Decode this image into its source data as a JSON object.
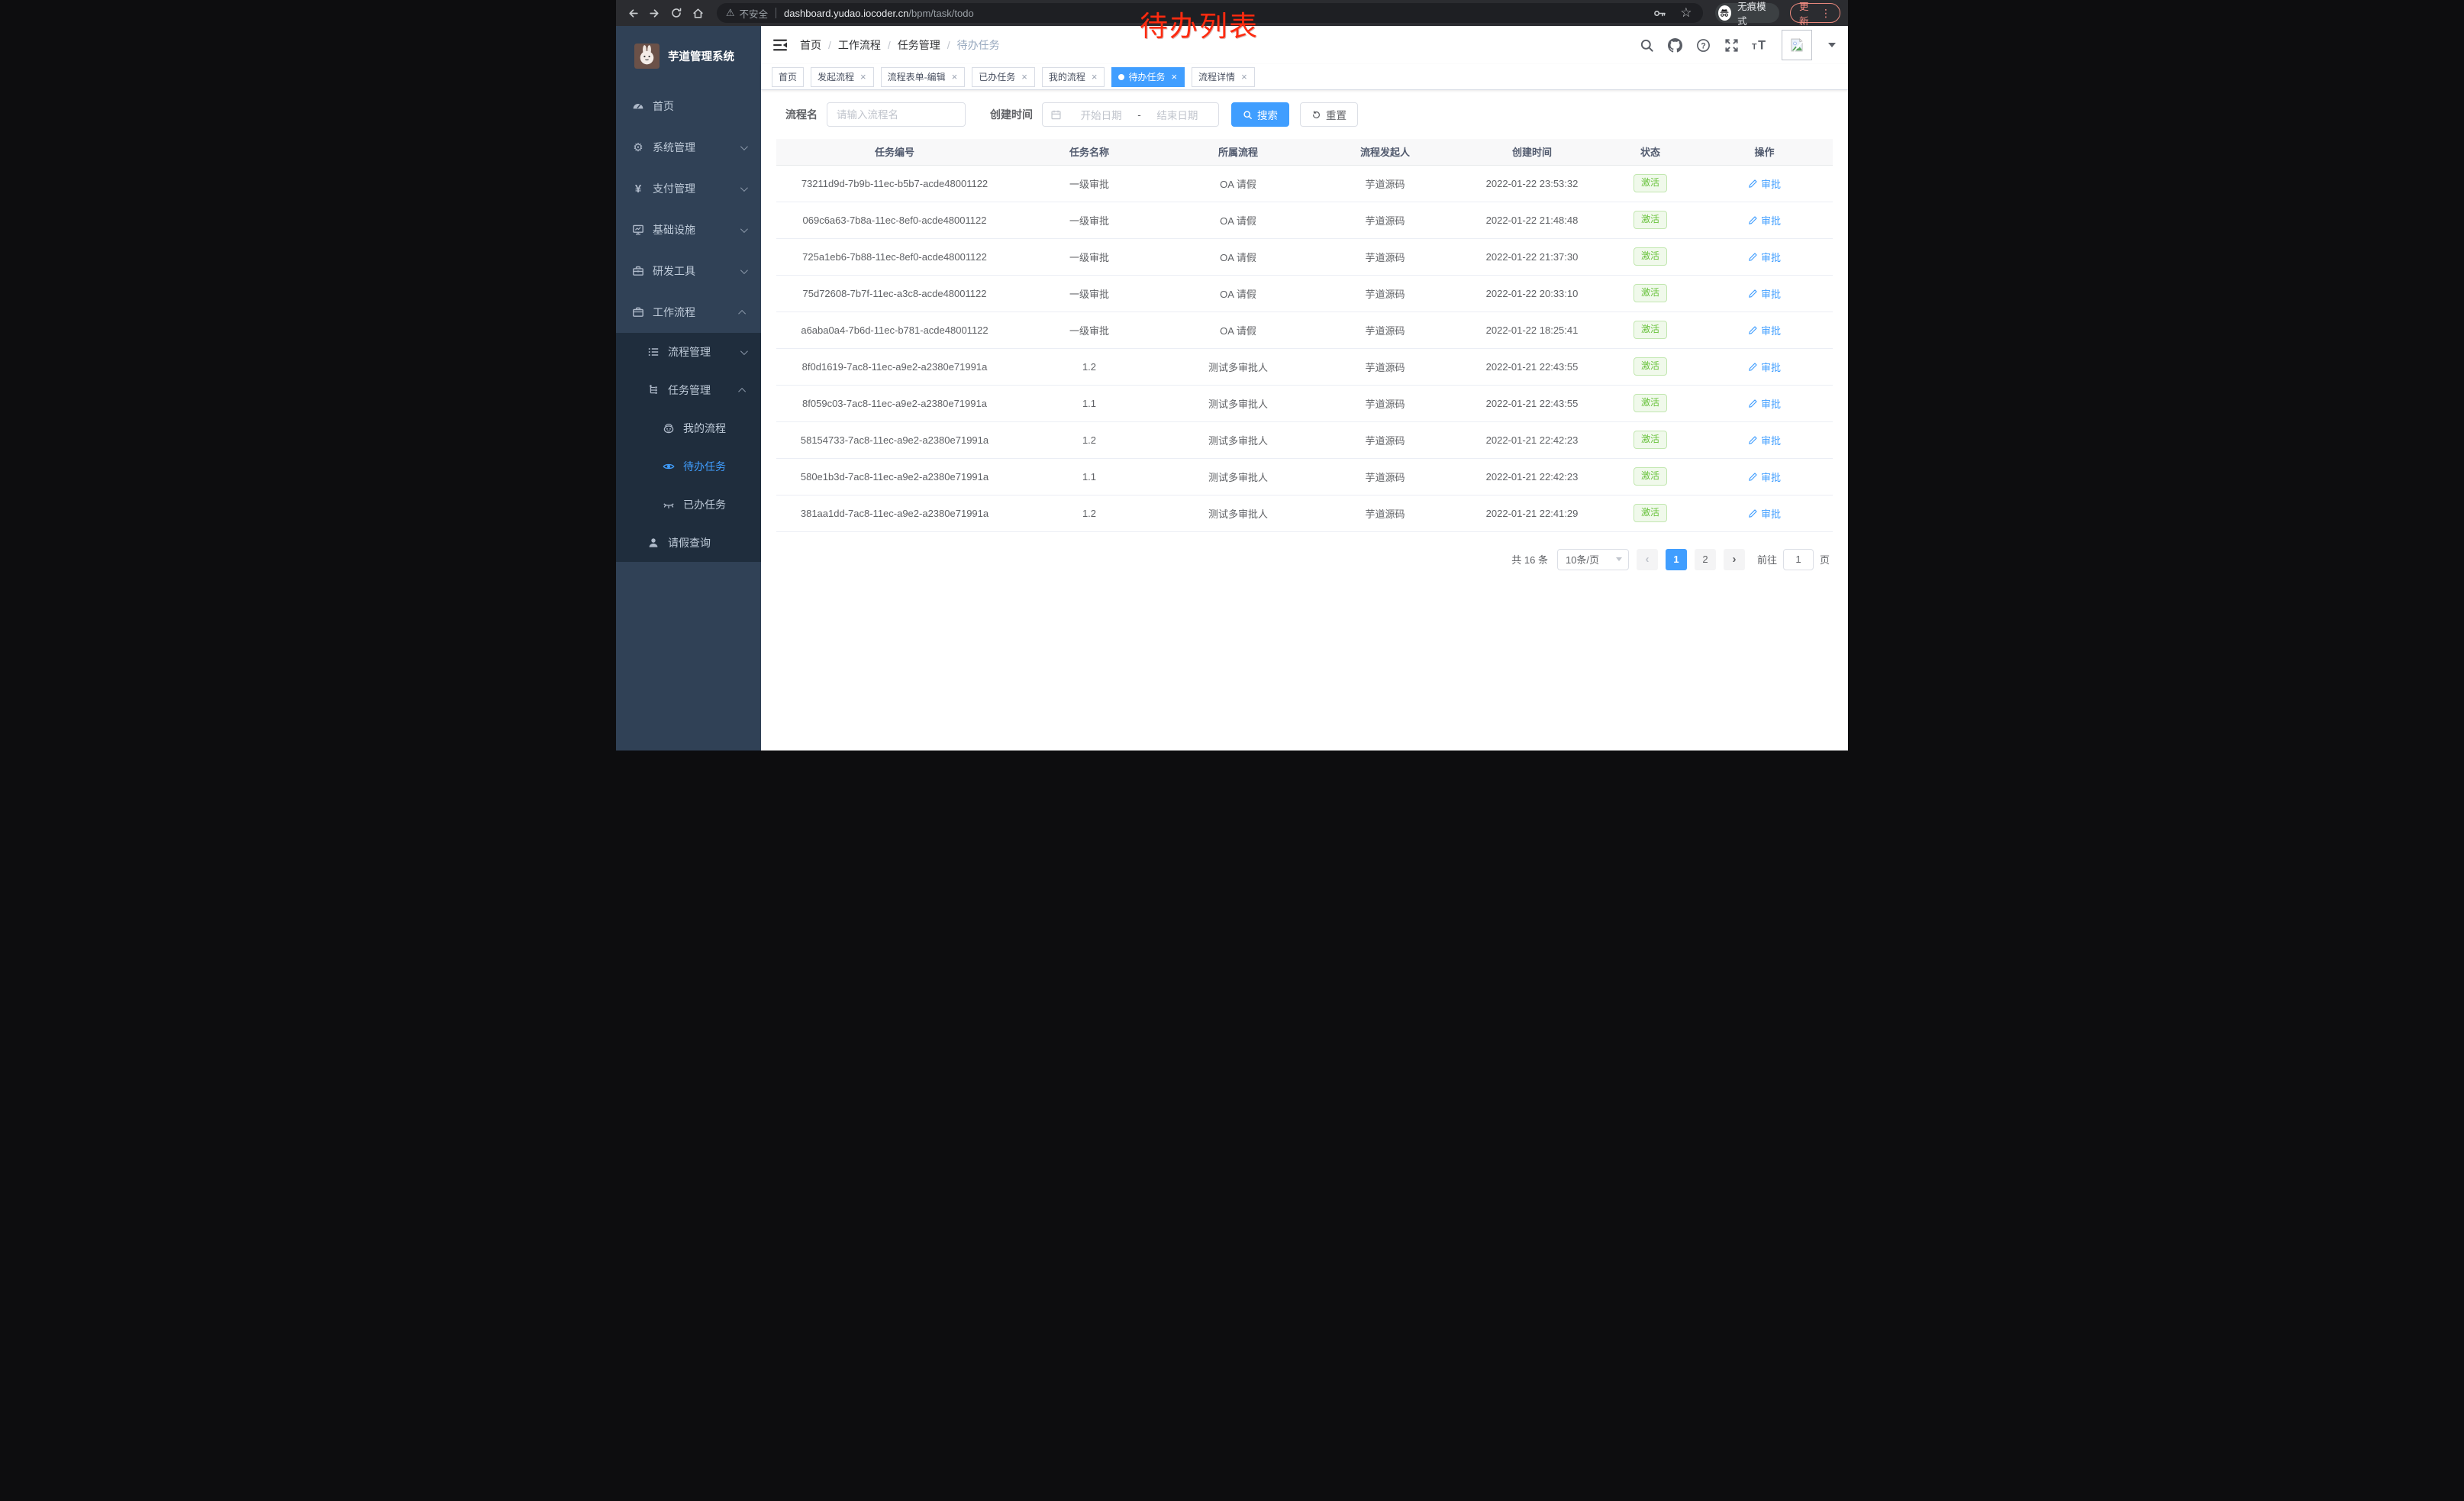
{
  "browser": {
    "security_label": "不安全",
    "url_host": "dashboard.yudao.iocoder.cn",
    "url_path": "/bpm/task/todo",
    "incognito_label": "无痕模式",
    "update_label": "更新"
  },
  "annotation": "待办列表",
  "sidebar": {
    "title": "芋道管理系统",
    "items": [
      {
        "label": "首页",
        "icon": "dashboard",
        "level": 1
      },
      {
        "label": "系统管理",
        "icon": "gear",
        "level": 1,
        "chevron": "down"
      },
      {
        "label": "支付管理",
        "icon": "yen",
        "level": 1,
        "chevron": "down"
      },
      {
        "label": "基础设施",
        "icon": "monitor",
        "level": 1,
        "chevron": "down"
      },
      {
        "label": "研发工具",
        "icon": "toolbox",
        "level": 1,
        "chevron": "down"
      },
      {
        "label": "工作流程",
        "icon": "briefcase",
        "level": 1,
        "chevron": "up"
      },
      {
        "label": "流程管理",
        "icon": "list-tree",
        "level": 2,
        "chevron": "down",
        "dark": true
      },
      {
        "label": "任务管理",
        "icon": "org-tree",
        "level": 2,
        "chevron": "up",
        "dark": true
      },
      {
        "label": "我的流程",
        "icon": "robot",
        "level": 3,
        "dark": true
      },
      {
        "label": "待办任务",
        "icon": "eye",
        "level": 3,
        "dark": true,
        "active": true
      },
      {
        "label": "已办任务",
        "icon": "eye-closed",
        "level": 3,
        "dark": true
      },
      {
        "label": "请假查询",
        "icon": "user",
        "level": 2,
        "dark": true
      }
    ]
  },
  "navbar": {
    "breadcrumb": [
      "首页",
      "工作流程",
      "任务管理",
      "待办任务"
    ]
  },
  "tags": [
    {
      "label": "首页"
    },
    {
      "label": "发起流程",
      "closable": true
    },
    {
      "label": "流程表单-编辑",
      "closable": true
    },
    {
      "label": "已办任务",
      "closable": true
    },
    {
      "label": "我的流程",
      "closable": true
    },
    {
      "label": "待办任务",
      "closable": true,
      "active": true
    },
    {
      "label": "流程详情",
      "closable": true
    }
  ],
  "filters": {
    "name_label": "流程名",
    "name_placeholder": "请输入流程名",
    "time_label": "创建时间",
    "start_placeholder": "开始日期",
    "range_separator": "-",
    "end_placeholder": "结束日期",
    "search_label": "搜索",
    "reset_label": "重置"
  },
  "table": {
    "columns": [
      "任务编号",
      "任务名称",
      "所属流程",
      "流程发起人",
      "创建时间",
      "状态",
      "操作"
    ],
    "rows": [
      {
        "id": "73211d9d-7b9b-11ec-b5b7-acde48001122",
        "name": "一级审批",
        "process": "OA 请假",
        "initiator": "芋道源码",
        "created": "2022-01-22 23:53:32",
        "status": "激活",
        "action": "审批"
      },
      {
        "id": "069c6a63-7b8a-11ec-8ef0-acde48001122",
        "name": "一级审批",
        "process": "OA 请假",
        "initiator": "芋道源码",
        "created": "2022-01-22 21:48:48",
        "status": "激活",
        "action": "审批"
      },
      {
        "id": "725a1eb6-7b88-11ec-8ef0-acde48001122",
        "name": "一级审批",
        "process": "OA 请假",
        "initiator": "芋道源码",
        "created": "2022-01-22 21:37:30",
        "status": "激活",
        "action": "审批"
      },
      {
        "id": "75d72608-7b7f-11ec-a3c8-acde48001122",
        "name": "一级审批",
        "process": "OA 请假",
        "initiator": "芋道源码",
        "created": "2022-01-22 20:33:10",
        "status": "激活",
        "action": "审批"
      },
      {
        "id": "a6aba0a4-7b6d-11ec-b781-acde48001122",
        "name": "一级审批",
        "process": "OA 请假",
        "initiator": "芋道源码",
        "created": "2022-01-22 18:25:41",
        "status": "激活",
        "action": "审批"
      },
      {
        "id": "8f0d1619-7ac8-11ec-a9e2-a2380e71991a",
        "name": "1.2",
        "process": "测试多审批人",
        "initiator": "芋道源码",
        "created": "2022-01-21 22:43:55",
        "status": "激活",
        "action": "审批"
      },
      {
        "id": "8f059c03-7ac8-11ec-a9e2-a2380e71991a",
        "name": "1.1",
        "process": "测试多审批人",
        "initiator": "芋道源码",
        "created": "2022-01-21 22:43:55",
        "status": "激活",
        "action": "审批"
      },
      {
        "id": "58154733-7ac8-11ec-a9e2-a2380e71991a",
        "name": "1.2",
        "process": "测试多审批人",
        "initiator": "芋道源码",
        "created": "2022-01-21 22:42:23",
        "status": "激活",
        "action": "审批"
      },
      {
        "id": "580e1b3d-7ac8-11ec-a9e2-a2380e71991a",
        "name": "1.1",
        "process": "测试多审批人",
        "initiator": "芋道源码",
        "created": "2022-01-21 22:42:23",
        "status": "激活",
        "action": "审批"
      },
      {
        "id": "381aa1dd-7ac8-11ec-a9e2-a2380e71991a",
        "name": "1.2",
        "process": "测试多审批人",
        "initiator": "芋道源码",
        "created": "2022-01-21 22:41:29",
        "status": "激活",
        "action": "审批"
      }
    ]
  },
  "pagination": {
    "total": "共 16 条",
    "page_size": "10条/页",
    "pages": [
      "1",
      "2"
    ],
    "active_page": "1",
    "goto_label": "前往",
    "goto_value": "1",
    "goto_unit": "页"
  },
  "colors": {
    "accent": "#409eff",
    "sidebar_bg": "#304156",
    "submenu_bg": "#1f2d3d",
    "status_green": "#67c23a",
    "annotation_red": "#fd2b10",
    "update_red": "#f28b82"
  }
}
